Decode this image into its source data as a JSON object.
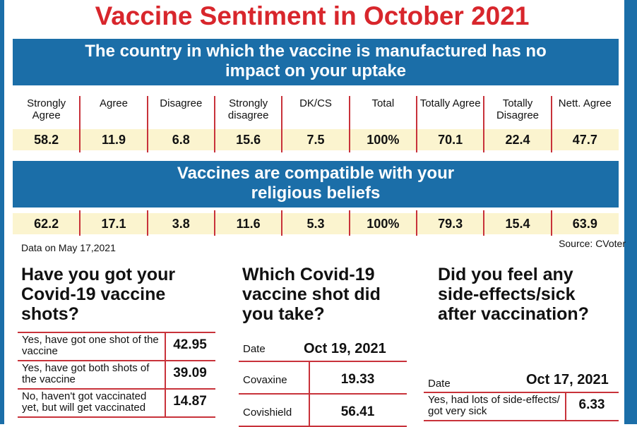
{
  "title": "Vaccine Sentiment in October 2021",
  "sentiment_table": {
    "headers": [
      "Strongly Agree",
      "Agree",
      "Disagree",
      "Strongly disagree",
      "DK/CS",
      "Total",
      "Totally Agree",
      "Totally Disagree",
      "Nett. Agree"
    ],
    "sections": [
      {
        "statement_lines": [
          "The country in which the vaccine is manufactured has no",
          "impact on your uptake"
        ],
        "values": [
          "58.2",
          "11.9",
          "6.8",
          "15.6",
          "7.5",
          "100%",
          "70.1",
          "22.4",
          "47.7"
        ]
      },
      {
        "statement_lines": [
          "Vaccines are compatible with your",
          "religious beliefs"
        ],
        "values": [
          "62.2",
          "17.1",
          "3.8",
          "11.6",
          "5.3",
          "100%",
          "79.3",
          "15.4",
          "63.9"
        ]
      }
    ]
  },
  "note": "Data on May 17,2021",
  "source": "Source: CVoter",
  "panels": [
    {
      "question_lines": [
        "Have you got your",
        "Covid-19 vaccine",
        "shots?"
      ],
      "rows": [
        {
          "label": "Yes, have got one shot of the vaccine",
          "value": "42.95"
        },
        {
          "label": "Yes, have got both shots of the vaccine",
          "value": "39.09"
        },
        {
          "label": "No, haven't got vaccinated yet, but will get vaccinated",
          "value": "14.87"
        }
      ]
    },
    {
      "question_lines": [
        "Which Covid-19",
        "vaccine shot did",
        "you take?"
      ],
      "date_label": "Date",
      "date": "Oct 19, 2021",
      "rows": [
        {
          "label": "Covaxine",
          "value": "19.33"
        },
        {
          "label": "Covishield",
          "value": "56.41"
        }
      ]
    },
    {
      "question_lines": [
        "Did you feel any",
        "side-effects/sick",
        "after vaccination?"
      ],
      "date_label": "Date",
      "date": "Oct 17, 2021",
      "rows": [
        {
          "label": "Yes, had lots of side-effects/ got very sick",
          "value": "6.33"
        }
      ]
    }
  ]
}
